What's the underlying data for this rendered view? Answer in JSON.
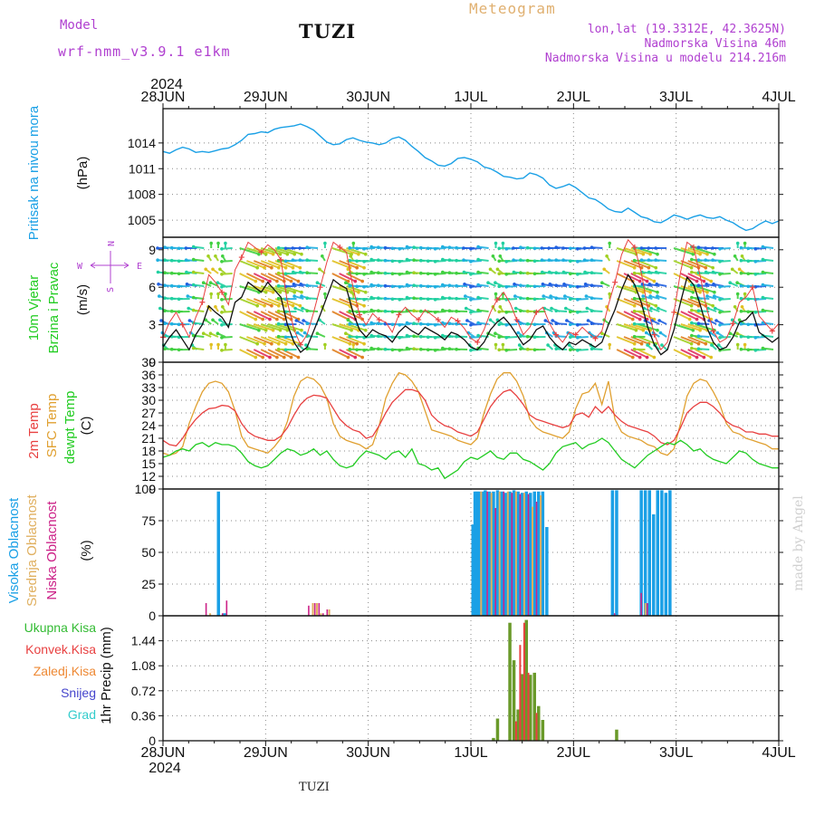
{
  "header": {
    "model_label": "Model",
    "model_name": "wrf-nmm_v3.9.1 e1km",
    "title": "TUZI",
    "meteogram": "Meteogram",
    "lonlat": "lon,lat (19.3312E, 42.3625N)",
    "visina": "Nadmorska Visina 46m",
    "visina_model": "Nadmorska Visina u modelu 214.216m",
    "bottom_label": "TUZI",
    "watermark": "made by Angel"
  },
  "colors": {
    "pressure": "#1aa0e6",
    "wind_speed": "#111111",
    "wind_gust": "#e84040",
    "temp2m": "#e84040",
    "sfc": "#e0a030",
    "dewpt": "#22cc22",
    "cloud_high": "#1aa0e6",
    "cloud_mid": "#e0b060",
    "cloud_low": "#cc2288",
    "precip_total": "#33bb33",
    "precip_conv": "#e84040",
    "precip_frozen": "#ee8833",
    "precip_snow": "#4444cc",
    "precip_grad": "#33cccc",
    "label_purple": "#b040d0"
  },
  "chart_data": [
    {
      "id": "pressure",
      "type": "line",
      "ylabel": "Pritisak na nivou mora",
      "unit": "(hPa)",
      "ylim": [
        1003,
        1018
      ],
      "yticks": [
        1005,
        1008,
        1011,
        1014
      ],
      "grid": true,
      "series": [
        {
          "values": [
            1013.0,
            1012.8,
            1013.2,
            1013.5,
            1013.3,
            1012.9,
            1013.0,
            1012.9,
            1013.1,
            1013.3,
            1013.4,
            1013.8,
            1014.3,
            1015.0,
            1015.1,
            1015.3,
            1015.2,
            1015.6,
            1015.8,
            1015.9,
            1016.0,
            1016.2,
            1015.9,
            1015.5,
            1014.8,
            1014.1,
            1013.8,
            1013.9,
            1014.4,
            1014.6,
            1014.3,
            1014.1,
            1014.0,
            1013.8,
            1014.0,
            1014.5,
            1014.7,
            1014.3,
            1013.6,
            1013.0,
            1012.3,
            1011.9,
            1011.4,
            1011.3,
            1011.6,
            1012.2,
            1012.3,
            1012.1,
            1011.8,
            1011.2,
            1011.0,
            1010.6,
            1010.1,
            1010.0,
            1009.8,
            1009.9,
            1010.5,
            1010.3,
            1009.9,
            1009.1,
            1008.7,
            1008.9,
            1009.2,
            1008.8,
            1008.2,
            1007.6,
            1007.4,
            1006.9,
            1006.3,
            1006.0,
            1005.9,
            1006.4,
            1005.9,
            1005.4,
            1005.2,
            1004.8,
            1004.7,
            1005.1,
            1005.6,
            1005.4,
            1005.1,
            1005.4,
            1005.6,
            1005.3,
            1005.2,
            1005.4,
            1005.0,
            1004.7,
            1004.2,
            1003.8,
            1004.0,
            1004.5,
            1004.9,
            1004.6,
            1004.9
          ]
        }
      ]
    },
    {
      "id": "wind",
      "type": "line",
      "ylabel_lines": [
        "10m Vjetar",
        "Brzina i Pravac"
      ],
      "unit": "(m/s)",
      "compass": {
        "n": "N",
        "s": "S",
        "e": "E",
        "w": "W"
      },
      "ylim": [
        0,
        10
      ],
      "yticks": [
        0,
        3,
        6,
        9
      ],
      "grid": true,
      "series": [
        {
          "name": "speed",
          "values": [
            1.2,
            2.0,
            2.6,
            1.8,
            1.0,
            2.2,
            3.0,
            4.5,
            4.0,
            3.6,
            2.8,
            4.8,
            5.2,
            6.4,
            6.0,
            5.6,
            6.4,
            5.8,
            5.2,
            3.0,
            1.6,
            0.8,
            1.2,
            2.5,
            3.8,
            5.2,
            6.6,
            6.2,
            5.9,
            4.0,
            2.6,
            2.0,
            2.6,
            2.3,
            2.1,
            1.6,
            2.4,
            2.9,
            2.5,
            2.2,
            2.8,
            2.5,
            2.2,
            1.8,
            2.4,
            2.2,
            1.8,
            1.2,
            1.0,
            1.6,
            2.6,
            3.2,
            3.6,
            3.0,
            2.2,
            1.4,
            1.8,
            2.6,
            2.9,
            2.0,
            1.4,
            1.0,
            1.6,
            1.4,
            1.8,
            1.5,
            1.2,
            1.6,
            3.0,
            4.2,
            5.8,
            7.0,
            6.2,
            4.8,
            2.8,
            1.4,
            0.6,
            1.0,
            2.6,
            4.8,
            6.8,
            6.2,
            4.6,
            2.8,
            1.6,
            1.0,
            1.2,
            2.0,
            3.2,
            3.4,
            4.0,
            2.4,
            2.0,
            1.6,
            2.0
          ]
        },
        {
          "name": "gust",
          "values": [
            2.0,
            3.2,
            4.0,
            3.0,
            2.0,
            3.6,
            4.8,
            7.0,
            6.4,
            5.6,
            4.6,
            7.4,
            8.4,
            9.6,
            9.2,
            8.8,
            9.4,
            9.0,
            8.2,
            4.8,
            2.6,
            1.4,
            2.2,
            4.0,
            6.0,
            8.0,
            9.6,
            9.2,
            8.8,
            6.0,
            3.8,
            3.0,
            3.9,
            3.4,
            3.2,
            2.4,
            3.8,
            4.4,
            3.8,
            3.4,
            4.2,
            3.8,
            3.4,
            2.8,
            3.6,
            3.3,
            2.7,
            1.9,
            1.6,
            2.6,
            4.0,
            5.0,
            5.6,
            4.7,
            3.4,
            2.2,
            2.8,
            4.0,
            4.4,
            3.1,
            2.2,
            1.6,
            2.4,
            2.2,
            2.8,
            2.3,
            1.9,
            2.5,
            4.6,
            6.4,
            8.6,
            9.8,
            9.2,
            7.2,
            4.3,
            2.2,
            1.0,
            1.6,
            4.0,
            7.2,
            9.6,
            9.2,
            6.9,
            4.3,
            2.5,
            1.6,
            1.9,
            3.1,
            4.8,
            5.2,
            6.0,
            3.7,
            3.1,
            2.5,
            3.1
          ]
        }
      ]
    },
    {
      "id": "temperature",
      "type": "line",
      "ylabel_lines": [
        "2m Temp",
        "SFC Temp",
        "dewpt Temp"
      ],
      "unit": "(C)",
      "ylim": [
        9,
        39
      ],
      "yticks": [
        9,
        12,
        15,
        18,
        21,
        24,
        27,
        30,
        33,
        36,
        39
      ],
      "grid": true,
      "series": [
        {
          "name": "2m Temp",
          "values": [
            20.5,
            19.5,
            19.2,
            21.0,
            23.5,
            25.5,
            27.0,
            28.0,
            28.2,
            28.8,
            28.6,
            27.5,
            24.5,
            22.5,
            21.5,
            21.0,
            20.5,
            20.5,
            21.5,
            23.5,
            26.5,
            29.0,
            30.5,
            31.2,
            31.0,
            30.5,
            28.0,
            25.5,
            24.0,
            23.0,
            22.5,
            21.0,
            21.5,
            24.0,
            27.0,
            29.5,
            31.0,
            32.5,
            32.5,
            32.0,
            30.0,
            26.5,
            25.0,
            24.0,
            23.5,
            22.5,
            22.0,
            21.5,
            22.5,
            25.5,
            28.5,
            30.5,
            32.0,
            32.5,
            31.0,
            29.0,
            26.5,
            25.5,
            25.0,
            24.5,
            24.0,
            23.5,
            24.0,
            26.5,
            27.0,
            26.0,
            28.5,
            27.0,
            28.5,
            26.5,
            25.0,
            24.0,
            23.5,
            23.0,
            22.5,
            21.5,
            20.0,
            19.5,
            20.5,
            23.5,
            27.0,
            28.5,
            29.5,
            29.5,
            28.5,
            27.0,
            25.0,
            24.0,
            23.5,
            22.5,
            22.5,
            22.0,
            22.0,
            21.5,
            21.5
          ]
        },
        {
          "name": "SFC Temp",
          "values": [
            17.5,
            17.0,
            17.5,
            19.0,
            24.5,
            28.5,
            32.0,
            34.0,
            34.5,
            34.0,
            32.0,
            27.5,
            21.5,
            19.0,
            18.5,
            18.0,
            17.5,
            19.0,
            21.0,
            25.0,
            31.0,
            34.5,
            35.5,
            35.0,
            33.5,
            30.5,
            24.5,
            21.5,
            20.5,
            20.0,
            19.5,
            18.5,
            19.5,
            24.0,
            30.5,
            34.0,
            36.5,
            36.0,
            34.5,
            32.0,
            27.5,
            23.0,
            22.5,
            22.0,
            21.5,
            20.5,
            20.0,
            19.5,
            21.0,
            27.0,
            31.5,
            35.0,
            36.5,
            36.5,
            34.5,
            31.0,
            25.5,
            23.5,
            22.5,
            22.0,
            21.5,
            21.0,
            22.5,
            28.0,
            31.5,
            32.0,
            34.0,
            29.0,
            34.5,
            25.5,
            22.5,
            21.5,
            21.0,
            20.5,
            19.5,
            19.0,
            17.5,
            17.0,
            18.5,
            24.5,
            31.0,
            34.0,
            35.0,
            34.5,
            32.0,
            29.0,
            24.5,
            22.5,
            22.0,
            21.0,
            20.5,
            20.0,
            19.5,
            18.5,
            18.5
          ]
        },
        {
          "name": "dewpt Temp",
          "values": [
            16.5,
            17.0,
            18.0,
            18.5,
            18.0,
            19.5,
            20.0,
            19.0,
            20.0,
            19.5,
            19.5,
            19.0,
            17.5,
            15.5,
            14.5,
            14.0,
            14.5,
            16.0,
            17.5,
            18.5,
            18.0,
            17.0,
            17.5,
            18.5,
            17.0,
            18.0,
            16.0,
            14.5,
            14.0,
            14.5,
            16.5,
            18.0,
            17.5,
            17.0,
            16.0,
            17.5,
            18.0,
            16.5,
            18.5,
            15.0,
            14.5,
            13.5,
            14.0,
            11.5,
            12.5,
            13.5,
            15.5,
            16.5,
            16.0,
            17.0,
            18.0,
            16.5,
            16.0,
            17.5,
            17.5,
            16.0,
            15.5,
            14.5,
            13.5,
            15.0,
            17.5,
            19.0,
            19.5,
            20.0,
            18.5,
            19.5,
            20.0,
            21.0,
            20.0,
            18.0,
            16.0,
            15.0,
            14.0,
            15.5,
            17.0,
            18.0,
            19.0,
            20.0,
            19.5,
            20.5,
            19.5,
            18.0,
            18.5,
            17.0,
            16.0,
            15.5,
            15.0,
            16.5,
            18.0,
            17.5,
            16.0,
            15.0,
            14.5,
            14.0,
            14.0
          ]
        }
      ]
    },
    {
      "id": "clouds",
      "type": "bar",
      "ylabel_lines": [
        "Visoka Oblacnost",
        "Srednja Oblacnost",
        "Niska Oblacnost"
      ],
      "unit": "(%)",
      "ylim": [
        0,
        100
      ],
      "yticks": [
        0,
        25,
        50,
        75,
        100
      ],
      "grid": true,
      "series": [
        {
          "name": "Visoka Oblacnost",
          "points": [
            [
              0.54,
              98
            ],
            [
              0.6,
              2
            ],
            [
              3.02,
              72
            ],
            [
              3.04,
              98
            ],
            [
              3.06,
              98
            ],
            [
              3.08,
              98
            ],
            [
              3.12,
              98
            ],
            [
              3.14,
              99
            ],
            [
              3.18,
              98
            ],
            [
              3.22,
              98
            ],
            [
              3.26,
              99
            ],
            [
              3.3,
              98
            ],
            [
              3.34,
              97
            ],
            [
              3.38,
              98
            ],
            [
              3.42,
              99
            ],
            [
              3.46,
              98
            ],
            [
              3.5,
              97
            ],
            [
              3.54,
              98
            ],
            [
              3.58,
              97
            ],
            [
              3.62,
              98
            ],
            [
              3.66,
              98
            ],
            [
              3.7,
              98
            ],
            [
              3.74,
              70
            ],
            [
              4.38,
              99
            ],
            [
              4.42,
              99
            ],
            [
              4.66,
              99
            ],
            [
              4.7,
              99
            ],
            [
              4.74,
              99
            ],
            [
              4.78,
              80
            ],
            [
              4.82,
              99
            ],
            [
              4.86,
              99
            ],
            [
              4.9,
              97
            ],
            [
              4.94,
              99
            ]
          ]
        },
        {
          "name": "Srednja Oblacnost",
          "points": [
            [
              0.46,
              2
            ],
            [
              1.46,
              10
            ],
            [
              1.5,
              10
            ],
            [
              1.54,
              2
            ],
            [
              1.62,
              5
            ],
            [
              3.1,
              98
            ],
            [
              3.2,
              97
            ],
            [
              3.28,
              98
            ],
            [
              3.36,
              98
            ],
            [
              3.44,
              98
            ],
            [
              3.52,
              97
            ],
            [
              3.6,
              86
            ],
            [
              3.68,
              95
            ],
            [
              4.7,
              10
            ]
          ]
        },
        {
          "name": "Niska Oblacnost",
          "points": [
            [
              0.42,
              10
            ],
            [
              0.58,
              2
            ],
            [
              0.62,
              12
            ],
            [
              1.42,
              8
            ],
            [
              1.48,
              10
            ],
            [
              1.52,
              10
            ],
            [
              1.56,
              2
            ],
            [
              1.6,
              5
            ],
            [
              3.16,
              98
            ],
            [
              3.24,
              85
            ],
            [
              3.32,
              98
            ],
            [
              3.4,
              97
            ],
            [
              3.48,
              96
            ],
            [
              3.56,
              96
            ],
            [
              3.64,
              90
            ],
            [
              4.4,
              2
            ],
            [
              4.66,
              18
            ],
            [
              4.72,
              10
            ]
          ]
        }
      ]
    },
    {
      "id": "precip",
      "type": "bar",
      "ylabel": "1hr Precip (mm)",
      "legend": [
        "Ukupna Kisa",
        "Konvek.Kisa",
        "Zaledj.Kisa",
        "Snijeg",
        "Grad"
      ],
      "ylim": [
        0,
        1.8
      ],
      "yticks": [
        0,
        0.36,
        0.72,
        1.08,
        1.44
      ],
      "grid": true,
      "series": [
        {
          "name": "Ukupna Kisa",
          "points": [
            [
              3.22,
              0.04
            ],
            [
              3.26,
              0.32
            ],
            [
              3.38,
              1.7
            ],
            [
              3.42,
              1.16
            ],
            [
              3.46,
              0.45
            ],
            [
              3.5,
              0.96
            ],
            [
              3.54,
              1.74
            ],
            [
              3.58,
              0.95
            ],
            [
              3.62,
              0.98
            ],
            [
              3.66,
              0.5
            ],
            [
              3.7,
              0.3
            ],
            [
              4.42,
              0.16
            ]
          ]
        },
        {
          "name": "Konvek.Kisa",
          "points": [
            [
              3.44,
              0.28
            ],
            [
              3.48,
              1.38
            ],
            [
              3.52,
              1.7
            ],
            [
              3.56,
              0.98
            ],
            [
              3.64,
              0.4
            ]
          ]
        }
      ]
    }
  ],
  "x_axis": {
    "ticks": [
      "28JUN",
      "29JUN",
      "30JUN",
      "1JUL",
      "2JUL",
      "3JUL",
      "4JUL"
    ],
    "year": "2024"
  }
}
